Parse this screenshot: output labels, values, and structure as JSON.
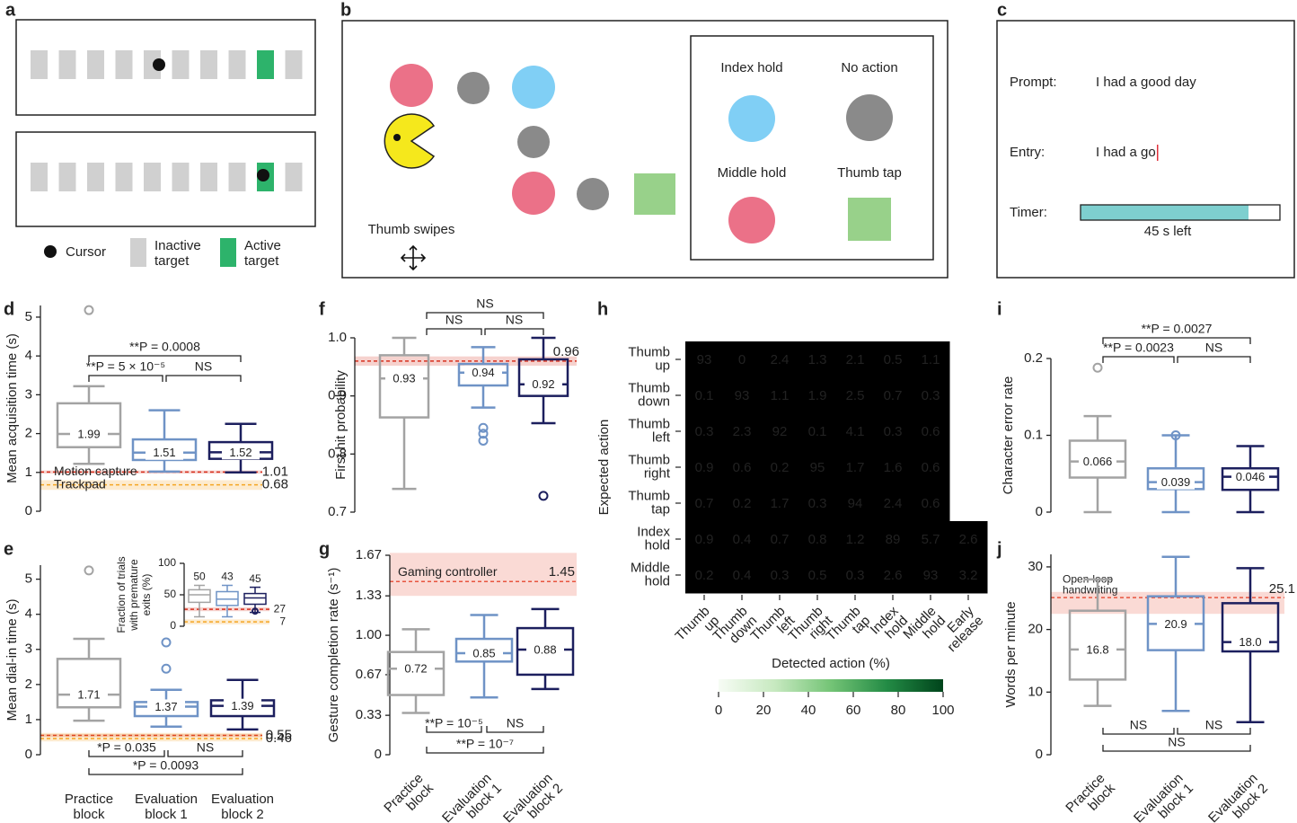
{
  "panel_labels": [
    "a",
    "b",
    "c",
    "d",
    "e",
    "f",
    "g",
    "h",
    "i",
    "j"
  ],
  "panel_a": {
    "cursor": "Cursor",
    "inactive": [
      "Inactive",
      "target"
    ],
    "active": [
      "Active",
      "target"
    ]
  },
  "panel_b": {
    "index_hold": "Index hold",
    "no_action": "No action",
    "middle_hold": "Middle hold",
    "thumb_tap": "Thumb tap",
    "thumb_swipes": "Thumb swipes"
  },
  "panel_c": {
    "prompt_label": "Prompt:",
    "prompt": "I had a good day",
    "entry_label": "Entry:",
    "entry": "I had a go",
    "timer_label": "Timer:",
    "timer": "45 s left"
  },
  "chart_data": [
    {
      "type": "box",
      "ylabel": "Mean acquisition time (s)",
      "ylim": [
        0,
        5.3
      ],
      "yticks": [
        0,
        1,
        2,
        3,
        4,
        5
      ],
      "boxes": [
        {
          "color": "#a3a3a3",
          "whislo": 1.22,
          "q1": 1.65,
          "med": 1.99,
          "q3": 2.78,
          "whishi": 3.22,
          "fliers": [
            5.18
          ]
        },
        {
          "color": "#6f93c6",
          "whislo": 1.02,
          "q1": 1.32,
          "med": 1.51,
          "q3": 1.85,
          "whishi": 2.6,
          "fliers": []
        },
        {
          "color": "#1c1f5e",
          "whislo": 1.0,
          "q1": 1.35,
          "med": 1.52,
          "q3": 1.78,
          "whishi": 2.25,
          "fliers": []
        }
      ],
      "ref_lines": [
        {
          "label": "Motion capture",
          "value": 1.01,
          "band": [
            0.97,
            1.05
          ],
          "color": "#d7301f"
        },
        {
          "label": "Trackpad",
          "value": 0.68,
          "band": [
            0.55,
            0.8
          ],
          "color": "#f5a623"
        }
      ],
      "comparisons": [
        "**P = 0.0008",
        "**P = 5 × 10⁻⁵",
        "NS"
      ]
    },
    {
      "type": "box",
      "ylabel": "Mean dial-in time (s)",
      "ylim": [
        0,
        5.4
      ],
      "yticks": [
        0,
        1,
        2,
        3,
        4,
        5
      ],
      "categories": [
        [
          "Practice",
          "block"
        ],
        [
          "Evaluation",
          "block 1"
        ],
        [
          "Evaluation",
          "block 2"
        ]
      ],
      "boxes": [
        {
          "color": "#a3a3a3",
          "whislo": 0.97,
          "q1": 1.35,
          "med": 1.71,
          "q3": 2.73,
          "whishi": 3.3,
          "fliers": [
            5.25
          ]
        },
        {
          "color": "#6f93c6",
          "whislo": 0.8,
          "q1": 1.1,
          "med": 1.37,
          "q3": 1.5,
          "whishi": 1.85,
          "fliers": [
            3.2,
            2.45
          ]
        },
        {
          "color": "#1c1f5e",
          "whislo": 0.72,
          "q1": 1.1,
          "med": 1.39,
          "q3": 1.55,
          "whishi": 2.13,
          "fliers": []
        }
      ],
      "ref_lines": [
        {
          "value": 0.55,
          "band": [
            0.51,
            0.59
          ],
          "color": "#d7301f"
        },
        {
          "value": 0.46,
          "band": [
            0.38,
            0.62
          ],
          "color": "#f5a623"
        }
      ],
      "comparisons": [
        "*P = 0.035",
        "NS",
        "*P = 0.0093"
      ]
    },
    {
      "type": "box",
      "ylabel": [
        "Fraction of trials",
        "with premature",
        "exits (%)"
      ],
      "ylim": [
        0,
        100
      ],
      "yticks": [
        0,
        50,
        100
      ],
      "boxes": [
        {
          "color": "#a3a3a3",
          "whislo": 15,
          "q1": 38,
          "med": 50,
          "q3": 58,
          "whishi": 65,
          "fliers": []
        },
        {
          "color": "#6f93c6",
          "whislo": 15,
          "q1": 33,
          "med": 43,
          "q3": 55,
          "whishi": 65,
          "fliers": []
        },
        {
          "color": "#1c1f5e",
          "whislo": 22,
          "q1": 35,
          "med": 45,
          "q3": 52,
          "whishi": 62,
          "fliers": [
            24
          ]
        }
      ],
      "ref_lines": [
        {
          "value": 27,
          "band": [
            24,
            30
          ],
          "color": "#d7301f"
        },
        {
          "value": 7,
          "band": [
            3,
            11
          ],
          "color": "#f5a623"
        }
      ]
    },
    {
      "type": "box",
      "ylabel": "First hit probability",
      "ylim": [
        0.7,
        1.0
      ],
      "yticks": [
        0.7,
        0.8,
        0.9,
        {
          "value": 1,
          "label": "1.0"
        }
      ],
      "boxes": [
        {
          "color": "#a3a3a3",
          "whislo": 0.74,
          "q1": 0.863,
          "med": 0.93,
          "q3": 0.97,
          "whishi": 1.0,
          "fliers": []
        },
        {
          "color": "#6f93c6",
          "whislo": 0.88,
          "q1": 0.918,
          "med": 0.94,
          "q3": 0.955,
          "whishi": 0.984,
          "fliers": [
            0.845,
            0.835,
            0.823
          ]
        },
        {
          "color": "#1c1f5e",
          "whislo": 0.853,
          "q1": 0.9,
          "med": 0.92,
          "q3": 0.963,
          "whishi": 1.0,
          "fliers": [
            0.728
          ]
        }
      ],
      "ref_lines": [
        {
          "value": 0.96,
          "band": [
            0.952,
            0.968
          ],
          "color": "#d7301f"
        }
      ],
      "comparisons": [
        "NS",
        "NS",
        "NS"
      ]
    },
    {
      "type": "box",
      "ylabel": "Gesture completion rate (s⁻¹)",
      "ylim": [
        0,
        1.67
      ],
      "yticks": [
        0,
        0.33,
        0.67,
        {
          "value": 1,
          "label": "1.00"
        },
        1.33,
        1.67
      ],
      "categories": [
        [
          "Practice",
          "block"
        ],
        [
          "Evaluation",
          "block 1"
        ],
        [
          "Evaluation",
          "block 2"
        ]
      ],
      "boxes": [
        {
          "color": "#a3a3a3",
          "whislo": 0.35,
          "q1": 0.5,
          "med": 0.72,
          "q3": 0.86,
          "whishi": 1.05,
          "fliers": []
        },
        {
          "color": "#6f93c6",
          "whislo": 0.48,
          "q1": 0.78,
          "med": 0.85,
          "q3": 0.97,
          "whishi": 1.17,
          "fliers": []
        },
        {
          "color": "#1c1f5e",
          "whislo": 0.55,
          "q1": 0.67,
          "med": 0.88,
          "q3": 1.06,
          "whishi": 1.22,
          "fliers": []
        }
      ],
      "ref_lines": [
        {
          "label": "Gaming controller",
          "value": 1.45,
          "band": [
            1.33,
            1.69
          ],
          "color": "#e8553f"
        }
      ],
      "comparisons": [
        "**P = 10⁻⁵",
        "NS",
        "**P = 10⁻⁷"
      ]
    },
    {
      "type": "heatmap",
      "xlabel": "Detected action (%)",
      "ylabel": "Expected action",
      "colormap": "Greens",
      "zlim": [
        0,
        100
      ],
      "zticks": [
        0,
        20,
        40,
        60,
        80,
        100
      ],
      "rows": [
        [
          "Thumb",
          "up"
        ],
        [
          "Thumb",
          "down"
        ],
        [
          "Thumb",
          "left"
        ],
        [
          "Thumb",
          "right"
        ],
        [
          "Thumb",
          "tap"
        ],
        [
          "Index",
          "hold"
        ],
        [
          "Middle",
          "hold"
        ]
      ],
      "columns": [
        [
          "Thumb",
          "up"
        ],
        [
          "Thumb",
          "down"
        ],
        [
          "Thumb",
          "left"
        ],
        [
          "Thumb",
          "right"
        ],
        [
          "Thumb",
          "tap"
        ],
        [
          "Index",
          "hold"
        ],
        [
          "Middle",
          "hold"
        ],
        [
          "Early",
          "release"
        ]
      ],
      "values": [
        [
          93,
          0,
          2.4,
          1.3,
          2.1,
          0.5,
          1.1,
          null
        ],
        [
          0.1,
          93,
          1.1,
          1.9,
          2.5,
          0.7,
          0.3,
          null
        ],
        [
          0.3,
          2.3,
          92,
          0.1,
          4.1,
          0.3,
          0.6,
          null
        ],
        [
          0.9,
          0.6,
          0.2,
          95,
          1.7,
          1.6,
          0.6,
          null
        ],
        [
          0.7,
          0.2,
          1.7,
          0.3,
          94,
          2.4,
          0.6,
          null
        ],
        [
          0.9,
          0.4,
          0.7,
          0.8,
          1.2,
          89,
          5.7,
          2.6
        ],
        [
          0.2,
          0.4,
          0.3,
          0.5,
          0.3,
          2.6,
          93,
          3.2
        ]
      ]
    },
    {
      "type": "box",
      "ylabel": "Character error rate",
      "ylim": [
        0,
        0.2
      ],
      "yticks": [
        0,
        0.1,
        0.2
      ],
      "boxes": [
        {
          "color": "#a3a3a3",
          "whislo": 0,
          "q1": 0.045,
          "med": 0.066,
          "q3": 0.093,
          "whishi": 0.125,
          "fliers": [
            0.188
          ]
        },
        {
          "color": "#6f93c6",
          "whislo": 0,
          "q1": 0.03,
          "med": 0.039,
          "q3": 0.057,
          "whishi": 0.1,
          "fliers": [
            0.1
          ]
        },
        {
          "color": "#1c1f5e",
          "whislo": 0,
          "q1": 0.029,
          "med": 0.046,
          "q3": 0.057,
          "whishi": 0.086,
          "fliers": []
        }
      ],
      "comparisons": [
        "**P = 0.0027",
        "**P = 0.0023",
        "NS"
      ]
    },
    {
      "type": "box",
      "ylabel": "Words per minute",
      "ylim": [
        0,
        32
      ],
      "yticks": [
        0,
        10,
        20,
        30
      ],
      "categories": [
        [
          "Practice",
          "block"
        ],
        [
          "Evaluation",
          "block 1"
        ],
        [
          "Evaluation",
          "block 2"
        ]
      ],
      "boxes": [
        {
          "color": "#a3a3a3",
          "whislo": 7.8,
          "q1": 12,
          "med": 16.8,
          "q3": 23,
          "whishi": 28,
          "fliers": []
        },
        {
          "color": "#6f93c6",
          "whislo": 7,
          "q1": 16.7,
          "med": 20.9,
          "q3": 25.3,
          "whishi": 31.6,
          "fliers": []
        },
        {
          "color": "#1c1f5e",
          "whislo": 5.2,
          "q1": 16.5,
          "med": 18,
          "med_label": "18.0",
          "q3": 24.2,
          "whishi": 29.8,
          "fliers": []
        }
      ],
      "ref_lines": [
        {
          "label": [
            "Open-loop",
            "handwriting"
          ],
          "value": 25.1,
          "band": [
            22.5,
            26
          ],
          "color": "#e8553f"
        }
      ],
      "comparisons": [
        "NS",
        "NS",
        "NS"
      ]
    }
  ]
}
